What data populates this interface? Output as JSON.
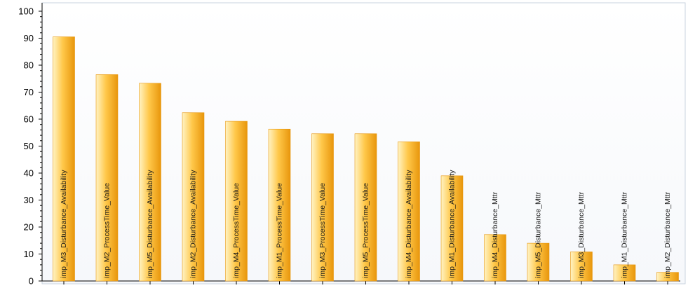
{
  "chart_data": {
    "type": "bar",
    "categories": [
      "imp_M3_Disturbance_Availability",
      "imp_M2_ProcessTime_Value",
      "imp_M5_Disturbance_Availability",
      "imp_M2_Disturbance_Availability",
      "imp_M4_ProcessTime_Value",
      "imp_M1_ProcessTime_Value",
      "imp_M3_ProcessTime_Value",
      "imp_M5_ProcessTime_Value",
      "imp_M4_Disturbance_Availability",
      "imp_M1_Disturbance_Availability",
      "imp_M4_Disturbance_Mttr",
      "imp_M5_Disturbance_Mttr",
      "imp_M3_Disturbance_Mttr",
      "imp_M1_Disturbance_Mttr",
      "imp_M2_Disturbance_Mttr"
    ],
    "values": [
      90.5,
      76.5,
      73.3,
      62.4,
      59.2,
      56.3,
      54.6,
      54.6,
      51.6,
      39.0,
      17.2,
      14.0,
      10.8,
      6.0,
      3.2
    ],
    "ylim": [
      0,
      100
    ],
    "yticks": [
      "0",
      "10",
      "20",
      "30",
      "40",
      "50",
      "60",
      "70",
      "80",
      "90",
      "100"
    ],
    "grid": false,
    "legend": "none",
    "colors": {
      "bar_light": "#fff3c4",
      "bar_mid": "#ffc84a",
      "bar_dark": "#e8960c",
      "plot_border": "#c9d3df",
      "axis": "#000000"
    }
  }
}
